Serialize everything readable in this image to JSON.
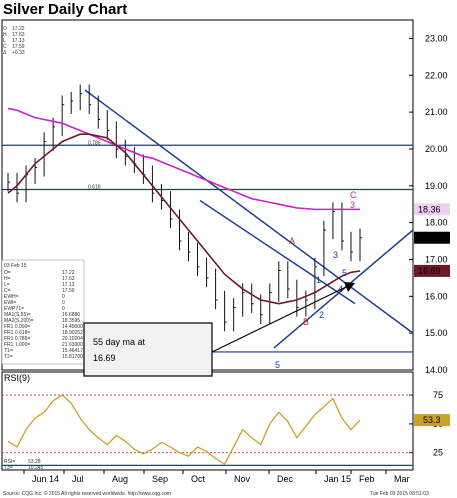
{
  "title": "Silver Daily Chart",
  "header_ohlc": [
    {
      "k": "O",
      "v": "17.22"
    },
    {
      "k": "H",
      "v": "17.63"
    },
    {
      "k": "L",
      "v": "17.13"
    },
    {
      "k": "C",
      "v": "17.59"
    },
    {
      "k": "Δ",
      "v": "+0.33"
    }
  ],
  "info_box": {
    "date": "03 Feb 15",
    "rows": [
      {
        "k": "O=",
        "v": "17.22"
      },
      {
        "k": "H=",
        "v": "17.63"
      },
      {
        "k": "L=",
        "v": "17.13"
      },
      {
        "k": "C=",
        "v": "17.59"
      },
      {
        "k": "EWH=",
        "v": "0"
      },
      {
        "k": "EWI=",
        "v": "0"
      },
      {
        "k": "EWP71=",
        "v": "0"
      },
      {
        "k": "MA1(S,55)=",
        "v": "16.6880"
      },
      {
        "k": "MA2(S,200)=",
        "v": "18.3595"
      },
      {
        "k": "FR1 0.000=",
        "v": "14.49000"
      },
      {
        "k": "FR1 0.618=",
        "v": "18.90252"
      },
      {
        "k": "FR1 0.786=",
        "v": "20.10204"
      },
      {
        "k": "FR1 1.000=",
        "v": "21.63000"
      },
      {
        "k": "T1=",
        "v": "15.46417"
      },
      {
        "k": "T2=",
        "v": "15.81700"
      }
    ]
  },
  "callout": {
    "text": "55 day ma at 16.69"
  },
  "price_badges": [
    {
      "value": "18.36",
      "bg": "#f0d0f0",
      "fg": "#000000"
    },
    {
      "value": "17.59",
      "bg": "#000000",
      "fg": "#ffffff"
    },
    {
      "value": "16.69",
      "bg": "#6b1a2a",
      "fg": "#ffffff"
    }
  ],
  "rsi_badge": {
    "value": "53.3",
    "bg": "#c9a227",
    "fg": "#000000"
  },
  "rsi_info": [
    {
      "k": "RSI=",
      "v": "53.28"
    },
    {
      "k": "T3=",
      "v": "10.245"
    }
  ],
  "footer_left": "Source: CQG Inc. © 2015 All rights reserved worldwide. http://www.cqg.com",
  "footer_right": "Tue Feb 03 2015 08:51:03",
  "fib_labels": [
    "0.786",
    "0.618"
  ],
  "wave_labels": [
    {
      "t": "A",
      "color": "#cc2222"
    },
    {
      "t": "B",
      "color": "#cc2222"
    },
    {
      "t": "C",
      "color": "#aa33aa"
    },
    {
      "t": "5",
      "color": "#2233aa"
    },
    {
      "t": "1",
      "color": "#2233aa"
    },
    {
      "t": "2",
      "color": "#2233aa"
    },
    {
      "t": "3",
      "color": "#2233aa"
    },
    {
      "t": "4",
      "color": "#2233aa"
    },
    {
      "t": "5",
      "color": "#2233aa"
    },
    {
      "t": "3",
      "color": "#aa33aa"
    }
  ],
  "chart_data": [
    {
      "type": "line",
      "title": "Silver Daily Chart",
      "x_tick_labels": [
        "Jun 14",
        "Jul",
        "Aug",
        "Sep",
        "Oct",
        "Nov",
        "Dec",
        "Jan 15",
        "Feb",
        "Mar"
      ],
      "ylim": [
        14.0,
        23.5
      ],
      "y_ticks": [
        14.0,
        15.0,
        16.0,
        17.0,
        18.0,
        19.0,
        20.0,
        21.0,
        22.0,
        23.0
      ],
      "price_closes": [
        19.1,
        18.8,
        19.3,
        19.5,
        20.2,
        20.6,
        21.2,
        21.3,
        21.5,
        21.2,
        20.8,
        20.5,
        20.0,
        19.8,
        19.6,
        19.3,
        18.8,
        18.6,
        18.1,
        17.5,
        17.2,
        16.8,
        16.5,
        15.9,
        15.3,
        15.7,
        16.1,
        15.8,
        15.5,
        16.1,
        16.7,
        16.2,
        15.7,
        15.9,
        16.8,
        17.8,
        18.3,
        17.5,
        17.2,
        17.59
      ],
      "series": [
        {
          "name": "MA2(S,200)",
          "color": "#cc22cc",
          "values": [
            21.1,
            21.05,
            20.95,
            20.85,
            20.8,
            20.75,
            20.7,
            20.6,
            20.5,
            20.4,
            20.3,
            20.2,
            20.1,
            20.0,
            19.9,
            19.8,
            19.75,
            19.65,
            19.55,
            19.45,
            19.35,
            19.25,
            19.15,
            19.05,
            18.95,
            18.85,
            18.75,
            18.65,
            18.6,
            18.55,
            18.5,
            18.45,
            18.4,
            18.38,
            18.36,
            18.36,
            18.36,
            18.36,
            18.36,
            18.3595
          ]
        },
        {
          "name": "MA1(S,55)",
          "color": "#6b1a2a",
          "values": [
            18.8,
            19.0,
            19.3,
            19.6,
            19.8,
            20.0,
            20.2,
            20.3,
            20.4,
            20.4,
            20.35,
            20.3,
            20.1,
            19.9,
            19.6,
            19.3,
            19.0,
            18.7,
            18.4,
            18.1,
            17.8,
            17.5,
            17.2,
            16.9,
            16.6,
            16.4,
            16.2,
            16.05,
            15.9,
            15.85,
            15.8,
            15.85,
            15.9,
            16.0,
            16.1,
            16.25,
            16.4,
            16.55,
            16.65,
            16.688
          ]
        }
      ]
    },
    {
      "type": "line",
      "title": "RSI(9)",
      "ylim": [
        10,
        95
      ],
      "y_ticks": [
        25,
        50,
        75
      ],
      "series": [
        {
          "name": "RSI",
          "color": "#c9a227",
          "values": [
            35,
            30,
            45,
            55,
            60,
            70,
            75,
            68,
            55,
            45,
            38,
            32,
            40,
            35,
            28,
            24,
            28,
            34,
            30,
            25,
            22,
            30,
            26,
            20,
            15,
            30,
            45,
            38,
            32,
            50,
            60,
            52,
            38,
            48,
            58,
            65,
            72,
            55,
            45,
            53.28
          ]
        }
      ]
    }
  ]
}
